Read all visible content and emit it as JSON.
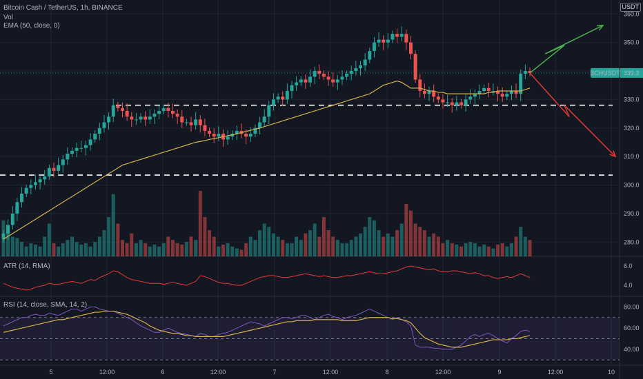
{
  "chart_info": {
    "title": "Bitcoin Cash / TetherUS, 1h, BINANCE",
    "volume_label": "Vol",
    "ema_label": "EMA (50, close, 0)",
    "currency": "USDT",
    "symbol_tag": "BCHUSDT",
    "last_price": "339.3"
  },
  "atr_panel": {
    "label": "ATR (14, RMA)",
    "ticks": [
      "6.0",
      "4.0"
    ]
  },
  "rsi_panel": {
    "label": "RSI (14, close, SMA, 14, 2)",
    "ticks": [
      "80.00",
      "60.00",
      "40.00"
    ]
  },
  "price_axis": {
    "ticks": [
      "360.0",
      "350.0",
      "340.0",
      "330.0",
      "320.0",
      "310.0",
      "300.0",
      "290.0",
      "280.0"
    ]
  },
  "time_axis": {
    "ticks": [
      "5",
      "12:00",
      "6",
      "12:00",
      "7",
      "12:00",
      "8",
      "12:00",
      "9",
      "12:00",
      "10"
    ]
  },
  "colors": {
    "up": "#26a69a",
    "down": "#ef5350",
    "ema": "#d4b34a",
    "atr": "#e53935",
    "rsi": "#7e57c2",
    "rsi_ma": "#d4b34a",
    "projection_up": "#4caf50",
    "projection_down": "#e53935"
  },
  "chart_data": {
    "type": "candlestick",
    "price_range": [
      275,
      362
    ],
    "support_levels": [
      328,
      303.5
    ],
    "close_series": [
      283,
      286,
      290,
      294,
      297,
      299,
      300,
      301,
      302,
      303,
      306,
      305,
      307,
      309,
      311,
      312,
      313,
      313,
      314,
      316,
      318,
      320,
      322,
      324,
      328,
      327,
      326,
      324,
      323,
      323,
      324,
      323,
      324,
      325,
      326,
      327,
      326,
      325,
      324,
      322,
      322,
      321,
      323,
      321,
      319,
      318,
      317,
      318,
      316,
      317,
      318,
      319,
      318,
      317,
      318,
      320,
      322,
      324,
      328,
      330,
      331,
      330,
      333,
      335,
      336,
      337,
      336,
      338,
      340,
      339,
      338,
      337,
      336,
      337,
      338,
      339,
      340,
      341,
      342,
      344,
      347,
      350,
      351,
      350,
      351,
      353,
      352,
      353,
      350,
      346,
      337,
      333,
      332,
      333,
      331,
      330,
      329,
      329,
      328,
      329,
      328,
      330,
      331,
      332,
      333,
      334,
      333,
      333,
      332,
      331,
      332,
      333,
      332,
      339,
      340,
      339.3
    ],
    "volume_relative": [
      0.55,
      0.4,
      0.3,
      0.28,
      0.22,
      0.15,
      0.2,
      0.18,
      0.15,
      0.3,
      0.5,
      0.2,
      0.15,
      0.2,
      0.25,
      0.3,
      0.22,
      0.18,
      0.2,
      0.15,
      0.22,
      0.3,
      0.4,
      0.6,
      0.95,
      0.5,
      0.25,
      0.2,
      0.35,
      0.2,
      0.25,
      0.2,
      0.15,
      0.18,
      0.15,
      0.2,
      0.3,
      0.25,
      0.2,
      0.18,
      0.22,
      0.3,
      0.25,
      1.0,
      0.6,
      0.4,
      0.3,
      0.15,
      0.18,
      0.2,
      0.15,
      0.12,
      0.1,
      0.2,
      0.3,
      0.25,
      0.4,
      0.5,
      0.45,
      0.35,
      0.3,
      0.25,
      0.2,
      0.2,
      0.3,
      0.25,
      0.35,
      0.4,
      0.5,
      0.3,
      0.6,
      0.4,
      0.3,
      0.25,
      0.2,
      0.2,
      0.25,
      0.3,
      0.35,
      0.45,
      0.6,
      0.55,
      0.4,
      0.3,
      0.35,
      0.3,
      0.4,
      0.5,
      0.8,
      0.7,
      0.5,
      0.45,
      0.4,
      0.3,
      0.35,
      0.3,
      0.2,
      0.25,
      0.2,
      0.18,
      0.15,
      0.2,
      0.22,
      0.2,
      0.15,
      0.18,
      0.15,
      0.12,
      0.18,
      0.2,
      0.15,
      0.2,
      0.3,
      0.45,
      0.3,
      0.25
    ],
    "ema_series": [
      281,
      282,
      283,
      284,
      285,
      286,
      287,
      288,
      289,
      290,
      291,
      292,
      293,
      294,
      295,
      296,
      297,
      298,
      299,
      300,
      301,
      302,
      303,
      304,
      305,
      306,
      307,
      307.5,
      308,
      308.5,
      309,
      309.5,
      310,
      310.5,
      311,
      311.5,
      312,
      312.5,
      313,
      313.5,
      314,
      314.5,
      315,
      315.3,
      315.6,
      316,
      316.3,
      316.6,
      317,
      317.3,
      317.6,
      318,
      318.4,
      318.8,
      319.2,
      319.6,
      320,
      320.5,
      321,
      321.5,
      322,
      322.5,
      323,
      323.5,
      324,
      324.5,
      325,
      325.5,
      326,
      326.5,
      327,
      327.5,
      328,
      328.5,
      329,
      329.5,
      330,
      330.5,
      331,
      331.5,
      332,
      333,
      334,
      335,
      335.5,
      336,
      336.5,
      336,
      335,
      334,
      334,
      334,
      333.5,
      333,
      333,
      332.5,
      332.5,
      332,
      332,
      332,
      332,
      332,
      332,
      332,
      332,
      332,
      332.5,
      332.5,
      333,
      333,
      333,
      333,
      333,
      333,
      333.5,
      334
    ],
    "atr_series": [
      4.2,
      4.0,
      3.8,
      3.7,
      3.6,
      3.5,
      3.6,
      3.8,
      3.9,
      4.0,
      4.2,
      4.1,
      4.1,
      4.2,
      4.3,
      4.4,
      4.3,
      4.2,
      4.4,
      4.6,
      4.5,
      4.8,
      5.0,
      5.2,
      5.5,
      5.4,
      5.1,
      4.8,
      4.6,
      4.5,
      4.4,
      4.3,
      4.2,
      4.2,
      4.2,
      4.1,
      4.2,
      4.3,
      4.2,
      4.1,
      4.0,
      4.2,
      4.4,
      5.0,
      4.9,
      4.7,
      4.5,
      4.3,
      4.2,
      4.2,
      4.1,
      4.0,
      4.0,
      4.2,
      4.4,
      4.6,
      4.8,
      4.9,
      5.0,
      5.0,
      4.9,
      4.8,
      4.8,
      4.9,
      5.0,
      5.1,
      5.2,
      5.1,
      5.0,
      4.9,
      5.0,
      4.9,
      4.8,
      4.8,
      4.9,
      5.0,
      5.0,
      5.1,
      5.2,
      5.3,
      5.4,
      5.3,
      5.2,
      5.2,
      5.3,
      5.4,
      5.5,
      5.7,
      5.9,
      6.0,
      5.9,
      5.8,
      5.7,
      5.6,
      5.7,
      5.5,
      5.4,
      5.4,
      5.5,
      5.5,
      5.4,
      5.3,
      5.2,
      5.3,
      5.2,
      5.0,
      5.0,
      4.8,
      4.7,
      4.8,
      4.9,
      4.8,
      5.0,
      5.2,
      5.0,
      4.8
    ],
    "rsi_series": [
      62,
      64,
      66,
      68,
      70,
      70,
      72,
      73,
      72,
      72,
      74,
      73,
      72,
      74,
      76,
      78,
      78,
      76,
      78,
      80,
      80,
      78,
      77,
      76,
      76,
      74,
      72,
      70,
      68,
      65,
      62,
      60,
      58,
      56,
      56,
      58,
      60,
      58,
      56,
      55,
      54,
      53,
      52,
      55,
      54,
      52,
      52,
      54,
      55,
      56,
      58,
      60,
      62,
      64,
      66,
      65,
      64,
      62,
      64,
      66,
      68,
      70,
      70,
      69,
      70,
      72,
      72,
      70,
      68,
      70,
      72,
      73,
      71,
      70,
      68,
      70,
      71,
      72,
      74,
      76,
      78,
      76,
      74,
      72,
      70,
      68,
      70,
      68,
      66,
      62,
      44,
      42,
      42,
      42,
      41,
      41,
      40,
      40,
      40,
      42,
      44,
      48,
      52,
      54,
      52,
      54,
      55,
      53,
      50,
      48,
      46,
      50,
      53,
      57,
      58,
      57
    ],
    "rsi_ma_series": [
      56,
      57,
      58,
      59,
      60,
      61,
      62,
      63,
      64,
      65,
      66,
      67,
      68,
      68,
      69,
      70,
      71,
      72,
      73,
      74,
      75,
      75,
      76,
      76,
      76,
      75,
      74,
      73,
      71,
      69,
      67,
      65,
      62,
      60,
      58,
      57,
      56,
      55,
      55,
      54,
      53,
      53,
      52,
      52,
      52,
      52,
      52,
      52,
      52,
      53,
      54,
      55,
      56,
      57,
      58,
      59,
      60,
      61,
      62,
      63,
      64,
      65,
      66,
      66,
      67,
      67,
      67,
      67,
      68,
      68,
      68,
      68,
      68,
      68,
      67,
      67,
      67,
      67,
      68,
      69,
      70,
      70,
      70,
      70,
      70,
      69,
      69,
      68,
      67,
      65,
      60,
      55,
      51,
      49,
      47,
      45,
      44,
      43,
      42,
      42,
      42,
      43,
      44,
      45,
      46,
      47,
      48,
      49,
      49,
      49,
      49,
      50,
      50,
      51,
      52,
      53
    ],
    "atr_range": [
      3.0,
      7.0
    ],
    "rsi_range": [
      25,
      90
    ],
    "rsi_levels": [
      70,
      50,
      30
    ]
  }
}
